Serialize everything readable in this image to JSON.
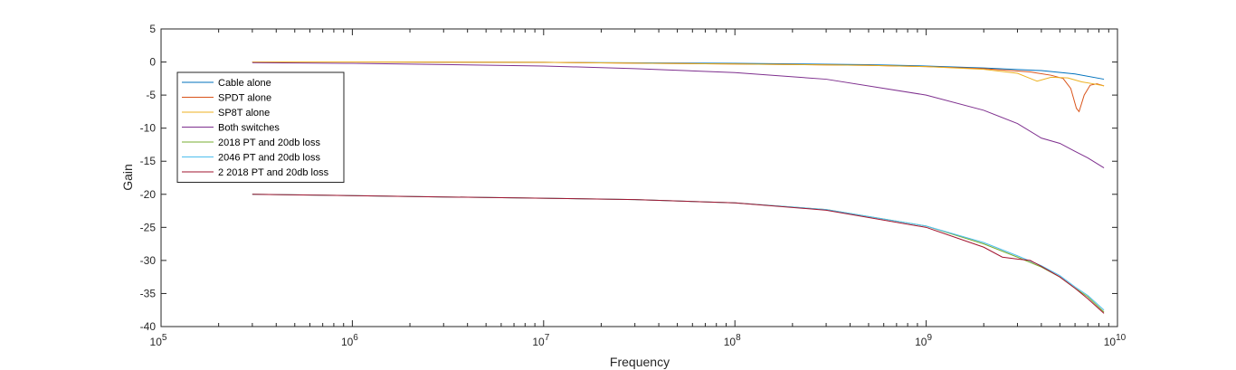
{
  "chart_data": {
    "type": "line",
    "xlabel": "Frequency",
    "ylabel": "Gain",
    "xscale": "log",
    "xlim": [
      100000,
      10000000000
    ],
    "ylim": [
      -40,
      5
    ],
    "x_ticks": [
      {
        "base": "10",
        "exp": "5"
      },
      {
        "base": "10",
        "exp": "6"
      },
      {
        "base": "10",
        "exp": "7"
      },
      {
        "base": "10",
        "exp": "8"
      },
      {
        "base": "10",
        "exp": "9"
      },
      {
        "base": "10",
        "exp": "10"
      }
    ],
    "y_ticks": [
      "5",
      "0",
      "-5",
      "-10",
      "-15",
      "-20",
      "-25",
      "-30",
      "-35",
      "-40"
    ],
    "grid": false,
    "legend_position": "top-left",
    "series": [
      {
        "name": "Cable alone",
        "color": "#0072BD",
        "x": [
          300000,
          1000000,
          10000000,
          100000000,
          500000000,
          1000000000,
          2000000000,
          4000000000,
          6000000000,
          8500000000
        ],
        "y": [
          0,
          0,
          -0.05,
          -0.2,
          -0.4,
          -0.6,
          -0.9,
          -1.3,
          -1.8,
          -2.6
        ]
      },
      {
        "name": "SPDT alone",
        "color": "#D95319",
        "x": [
          300000,
          1000000,
          10000000,
          100000000,
          500000000,
          1000000000,
          2000000000,
          3500000000,
          4500000000,
          5200000000,
          5700000000,
          6100000000,
          6300000000,
          6700000000,
          7200000000,
          7800000000,
          8500000000
        ],
        "y": [
          0,
          0,
          -0.05,
          -0.3,
          -0.5,
          -0.7,
          -1.0,
          -1.5,
          -2.0,
          -2.5,
          -4.0,
          -7.0,
          -7.5,
          -5.0,
          -3.5,
          -3.3,
          -3.6
        ]
      },
      {
        "name": "SP8T alone",
        "color": "#EDB120",
        "x": [
          300000,
          1000000,
          10000000,
          100000000,
          500000000,
          1000000000,
          2000000000,
          3000000000,
          3800000000,
          4500000000,
          5500000000,
          6500000000,
          7500000000,
          8500000000
        ],
        "y": [
          0,
          0,
          -0.05,
          -0.3,
          -0.5,
          -0.7,
          -1.1,
          -1.7,
          -2.9,
          -2.3,
          -2.4,
          -3.0,
          -3.3,
          -3.6
        ]
      },
      {
        "name": "Both switches",
        "color": "#7E2F8E",
        "x": [
          300000,
          1000000,
          10000000,
          30000000,
          100000000,
          300000000,
          1000000000,
          2000000000,
          3000000000,
          4000000000,
          5000000000,
          6000000000,
          7000000000,
          8500000000
        ],
        "y": [
          -0.1,
          -0.2,
          -0.6,
          -1.0,
          -1.6,
          -2.6,
          -5.0,
          -7.3,
          -9.3,
          -11.5,
          -12.3,
          -13.5,
          -14.5,
          -16.0
        ]
      },
      {
        "name": "2018 PT and 20db loss",
        "color": "#77AC30",
        "x": [
          300000,
          1000000,
          3000000,
          10000000,
          30000000,
          100000000,
          300000000,
          1000000000,
          2000000000,
          3000000000,
          4000000000,
          5000000000,
          6000000000,
          7000000000,
          8500000000
        ],
        "y": [
          -20.0,
          -20.2,
          -20.4,
          -20.6,
          -20.8,
          -21.3,
          -22.3,
          -24.8,
          -27.5,
          -29.5,
          -31.0,
          -32.5,
          -34.2,
          -35.5,
          -37.8
        ]
      },
      {
        "name": "2046 PT and 20db loss",
        "color": "#4DBEEE",
        "x": [
          300000,
          1000000,
          3000000,
          10000000,
          30000000,
          100000000,
          300000000,
          1000000000,
          2000000000,
          3000000000,
          4000000000,
          5000000000,
          6000000000,
          7000000000,
          8500000000
        ],
        "y": [
          -20.0,
          -20.2,
          -20.4,
          -20.6,
          -20.8,
          -21.3,
          -22.3,
          -24.8,
          -27.3,
          -29.3,
          -30.8,
          -32.3,
          -34.0,
          -35.3,
          -37.5
        ]
      },
      {
        "name": "2 2018 PT and 20db loss",
        "color": "#A2142F",
        "x": [
          300000,
          1000000,
          3000000,
          10000000,
          30000000,
          100000000,
          300000000,
          1000000000,
          2000000000,
          2500000000,
          3000000000,
          3500000000,
          4000000000,
          5000000000,
          6000000000,
          7000000000,
          8500000000
        ],
        "y": [
          -20.0,
          -20.2,
          -20.4,
          -20.6,
          -20.8,
          -21.3,
          -22.4,
          -25.0,
          -28.0,
          -29.5,
          -29.8,
          -30.0,
          -30.9,
          -32.5,
          -34.2,
          -35.8,
          -38.0
        ]
      }
    ]
  }
}
